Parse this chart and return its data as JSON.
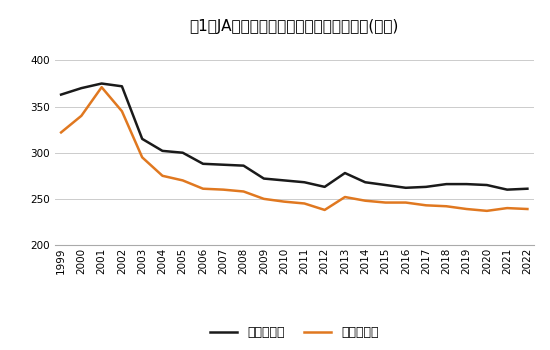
{
  "title": "図1　JA香川県の事業総利益と事業管理費(億円)",
  "years": [
    1999,
    2000,
    2001,
    2002,
    2003,
    2004,
    2005,
    2006,
    2007,
    2008,
    2009,
    2010,
    2011,
    2012,
    2013,
    2014,
    2015,
    2016,
    2017,
    2018,
    2019,
    2020,
    2021,
    2022
  ],
  "jigyou_sourieki": [
    363,
    370,
    375,
    372,
    315,
    302,
    300,
    288,
    287,
    286,
    272,
    270,
    268,
    263,
    278,
    268,
    265,
    262,
    263,
    266,
    266,
    265,
    260,
    261
  ],
  "jigyou_kanrihi": [
    322,
    340,
    371,
    345,
    295,
    275,
    270,
    261,
    260,
    258,
    250,
    247,
    245,
    238,
    252,
    248,
    246,
    246,
    243,
    242,
    239,
    237,
    240,
    239
  ],
  "line1_color": "#1a1a1a",
  "line2_color": "#e07820",
  "ylim_min": 200,
  "ylim_max": 420,
  "yticks": [
    200,
    250,
    300,
    350,
    400
  ],
  "legend1": "事業総利益",
  "legend2": "事業管理費",
  "bg_color": "#ffffff",
  "grid_color": "#cccccc",
  "title_fontsize": 11,
  "axis_fontsize": 7.5,
  "legend_fontsize": 9,
  "linewidth": 1.8
}
